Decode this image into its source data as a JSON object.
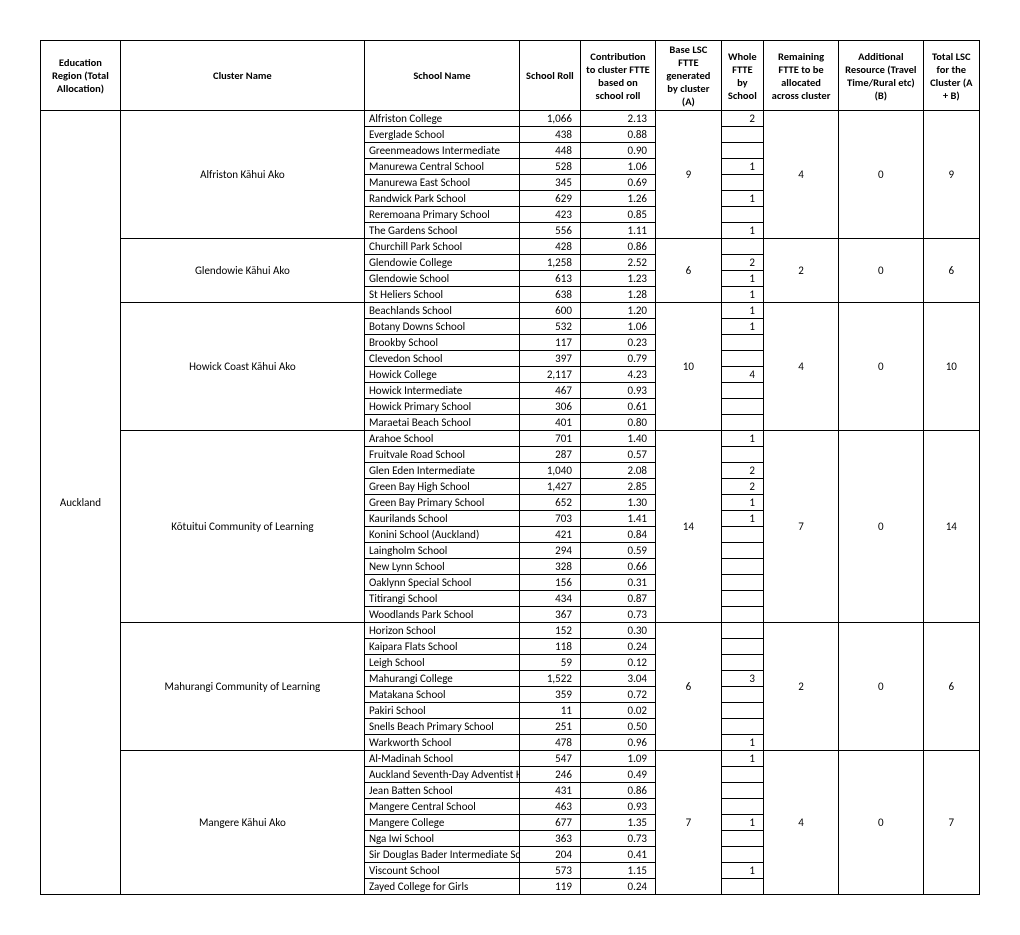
{
  "headers": {
    "region": "Education Region (Total Allocation)",
    "cluster": "Cluster Name",
    "school": "School Name",
    "roll": "School Roll",
    "contrib": "Contribution to cluster FTTE based on school roll",
    "base": "Base LSC FTTE generated by cluster (A)",
    "whole": "Whole FTTE by School",
    "remain": "Remaining FTTE to be allocated across cluster",
    "addl": "Additional Resource (Travel Time/Rural etc) (B)",
    "total": "Total LSC for the Cluster (A + B)"
  },
  "region": "Auckland",
  "clusters": [
    {
      "name": "Alfriston Kāhui Ako",
      "base": "9",
      "remain": "4",
      "addl": "0",
      "total": "9",
      "schools": [
        {
          "name": "Alfriston College",
          "roll": "1,066",
          "contrib": "2.13",
          "whole": "2"
        },
        {
          "name": "Everglade School",
          "roll": "438",
          "contrib": "0.88",
          "whole": ""
        },
        {
          "name": "Greenmeadows Intermediate",
          "roll": "448",
          "contrib": "0.90",
          "whole": ""
        },
        {
          "name": "Manurewa Central School",
          "roll": "528",
          "contrib": "1.06",
          "whole": "1"
        },
        {
          "name": "Manurewa East School",
          "roll": "345",
          "contrib": "0.69",
          "whole": ""
        },
        {
          "name": "Randwick Park School",
          "roll": "629",
          "contrib": "1.26",
          "whole": "1"
        },
        {
          "name": "Reremoana Primary School",
          "roll": "423",
          "contrib": "0.85",
          "whole": ""
        },
        {
          "name": "The Gardens School",
          "roll": "556",
          "contrib": "1.11",
          "whole": "1"
        }
      ]
    },
    {
      "name": "Glendowie Kāhui Ako",
      "base": "6",
      "remain": "2",
      "addl": "0",
      "total": "6",
      "schools": [
        {
          "name": "Churchill Park School",
          "roll": "428",
          "contrib": "0.86",
          "whole": ""
        },
        {
          "name": "Glendowie College",
          "roll": "1,258",
          "contrib": "2.52",
          "whole": "2"
        },
        {
          "name": "Glendowie School",
          "roll": "613",
          "contrib": "1.23",
          "whole": "1"
        },
        {
          "name": "St Heliers School",
          "roll": "638",
          "contrib": "1.28",
          "whole": "1"
        }
      ]
    },
    {
      "name": "Howick Coast Kāhui Ako",
      "base": "10",
      "remain": "4",
      "addl": "0",
      "total": "10",
      "schools": [
        {
          "name": "Beachlands School",
          "roll": "600",
          "contrib": "1.20",
          "whole": "1"
        },
        {
          "name": "Botany Downs School",
          "roll": "532",
          "contrib": "1.06",
          "whole": "1"
        },
        {
          "name": "Brookby School",
          "roll": "117",
          "contrib": "0.23",
          "whole": ""
        },
        {
          "name": "Clevedon School",
          "roll": "397",
          "contrib": "0.79",
          "whole": ""
        },
        {
          "name": "Howick College",
          "roll": "2,117",
          "contrib": "4.23",
          "whole": "4"
        },
        {
          "name": "Howick Intermediate",
          "roll": "467",
          "contrib": "0.93",
          "whole": ""
        },
        {
          "name": "Howick Primary School",
          "roll": "306",
          "contrib": "0.61",
          "whole": ""
        },
        {
          "name": "Maraetai Beach School",
          "roll": "401",
          "contrib": "0.80",
          "whole": ""
        }
      ]
    },
    {
      "name": "Kōtuitui Community of Learning",
      "base": "14",
      "remain": "7",
      "addl": "0",
      "total": "14",
      "schools": [
        {
          "name": "Arahoe School",
          "roll": "701",
          "contrib": "1.40",
          "whole": "1"
        },
        {
          "name": "Fruitvale Road School",
          "roll": "287",
          "contrib": "0.57",
          "whole": ""
        },
        {
          "name": "Glen Eden Intermediate",
          "roll": "1,040",
          "contrib": "2.08",
          "whole": "2"
        },
        {
          "name": "Green Bay High School",
          "roll": "1,427",
          "contrib": "2.85",
          "whole": "2"
        },
        {
          "name": "Green Bay Primary School",
          "roll": "652",
          "contrib": "1.30",
          "whole": "1"
        },
        {
          "name": "Kaurilands School",
          "roll": "703",
          "contrib": "1.41",
          "whole": "1"
        },
        {
          "name": "Konini School (Auckland)",
          "roll": "421",
          "contrib": "0.84",
          "whole": ""
        },
        {
          "name": "Laingholm School",
          "roll": "294",
          "contrib": "0.59",
          "whole": ""
        },
        {
          "name": "New Lynn School",
          "roll": "328",
          "contrib": "0.66",
          "whole": ""
        },
        {
          "name": "Oaklynn Special School",
          "roll": "156",
          "contrib": "0.31",
          "whole": ""
        },
        {
          "name": "Titirangi School",
          "roll": "434",
          "contrib": "0.87",
          "whole": ""
        },
        {
          "name": "Woodlands Park School",
          "roll": "367",
          "contrib": "0.73",
          "whole": ""
        }
      ]
    },
    {
      "name": "Mahurangi Community of Learning",
      "base": "6",
      "remain": "2",
      "addl": "0",
      "total": "6",
      "schools": [
        {
          "name": "Horizon School",
          "roll": "152",
          "contrib": "0.30",
          "whole": ""
        },
        {
          "name": "Kaipara Flats School",
          "roll": "118",
          "contrib": "0.24",
          "whole": ""
        },
        {
          "name": "Leigh School",
          "roll": "59",
          "contrib": "0.12",
          "whole": ""
        },
        {
          "name": "Mahurangi College",
          "roll": "1,522",
          "contrib": "3.04",
          "whole": "3"
        },
        {
          "name": "Matakana School",
          "roll": "359",
          "contrib": "0.72",
          "whole": ""
        },
        {
          "name": "Pakiri School",
          "roll": "11",
          "contrib": "0.02",
          "whole": ""
        },
        {
          "name": "Snells Beach Primary School",
          "roll": "251",
          "contrib": "0.50",
          "whole": ""
        },
        {
          "name": "Warkworth School",
          "roll": "478",
          "contrib": "0.96",
          "whole": "1"
        }
      ]
    },
    {
      "name": "Mangere Kāhui Ako",
      "base": "7",
      "remain": "4",
      "addl": "0",
      "total": "7",
      "schools": [
        {
          "name": "Al-Madinah School",
          "roll": "547",
          "contrib": "1.09",
          "whole": "1"
        },
        {
          "name": "Auckland Seventh-Day Adventist H S",
          "roll": "246",
          "contrib": "0.49",
          "whole": ""
        },
        {
          "name": "Jean Batten School",
          "roll": "431",
          "contrib": "0.86",
          "whole": ""
        },
        {
          "name": "Mangere Central School",
          "roll": "463",
          "contrib": "0.93",
          "whole": ""
        },
        {
          "name": "Mangere College",
          "roll": "677",
          "contrib": "1.35",
          "whole": "1"
        },
        {
          "name": "Nga Iwi School",
          "roll": "363",
          "contrib": "0.73",
          "whole": ""
        },
        {
          "name": "Sir Douglas Bader Intermediate School",
          "roll": "204",
          "contrib": "0.41",
          "whole": ""
        },
        {
          "name": "Viscount School",
          "roll": "573",
          "contrib": "1.15",
          "whole": "1"
        },
        {
          "name": "Zayed College for Girls",
          "roll": "119",
          "contrib": "0.24",
          "whole": ""
        }
      ]
    }
  ]
}
